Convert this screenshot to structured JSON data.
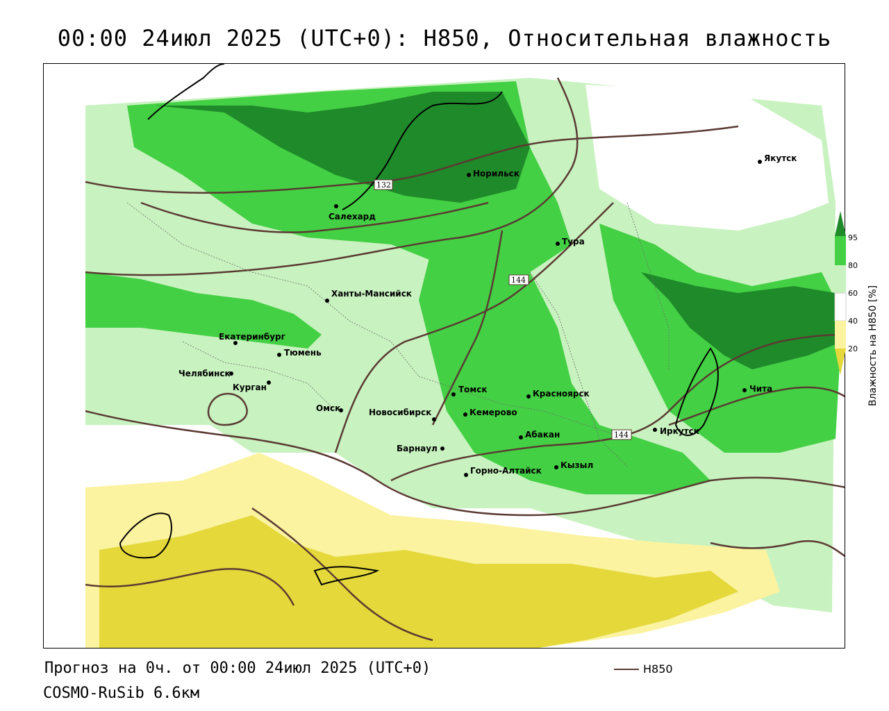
{
  "title": "00:00 24июл 2025 (UTC+0): H850, Относительная влажность",
  "footer": {
    "forecast": "Прогноз на 0ч. от 00:00 24июл 2025 (UTC+0)",
    "model": "COSMO-RuSib 6.6км"
  },
  "legend": {
    "contour_label": "H850",
    "contour_color": "#5a3a32"
  },
  "colorbar": {
    "title": "Влажность на H850 [%]",
    "ticks": [
      "95",
      "80",
      "60",
      "40",
      "20"
    ],
    "colors": {
      "c95": "#1f8a2a",
      "c80": "#44d044",
      "c60": "#c8f2c0",
      "c40": "#ffffff",
      "c20": "#fbf3a0",
      "c0": "#e4d83a"
    }
  },
  "contour_labels": [
    "132",
    "144",
    "144"
  ],
  "cities": [
    {
      "name": "Якутск"
    },
    {
      "name": "Норильск"
    },
    {
      "name": "Салехард"
    },
    {
      "name": "Тура"
    },
    {
      "name": "Ханты-Мансийск"
    },
    {
      "name": "Екатеринбург"
    },
    {
      "name": "Тюмень"
    },
    {
      "name": "Челябинск"
    },
    {
      "name": "Курган"
    },
    {
      "name": "Омск"
    },
    {
      "name": "Новосибирск"
    },
    {
      "name": "Томск"
    },
    {
      "name": "Красноярск"
    },
    {
      "name": "Кемерово"
    },
    {
      "name": "Абакан"
    },
    {
      "name": "Иркутск"
    },
    {
      "name": "Барнаул"
    },
    {
      "name": "Горно-Алтайск"
    },
    {
      "name": "Кызыл"
    },
    {
      "name": "Чита"
    }
  ]
}
